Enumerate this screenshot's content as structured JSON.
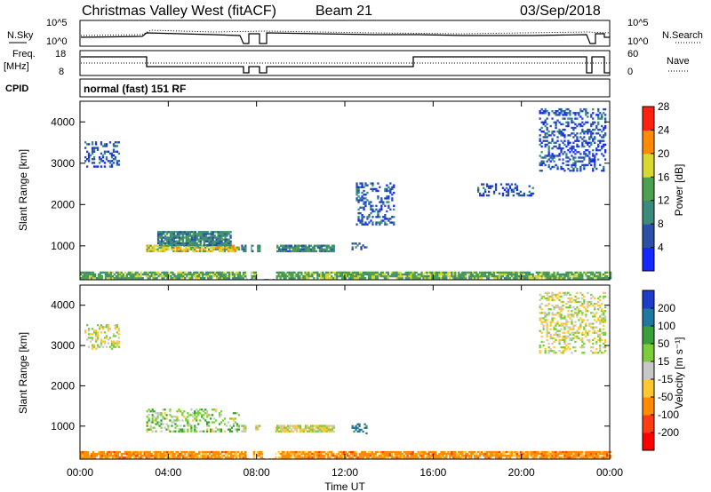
{
  "header": {
    "station": "Christmas Valley West (fitACF)",
    "beam": "Beam 21",
    "date": "03/Sep/2018"
  },
  "top_panels": {
    "nsky": {
      "label": "N.Sky",
      "left_ticks": [
        "10^5",
        "10^0"
      ],
      "right_label": "N.Search",
      "right_ticks": [
        "10^5",
        "10^0"
      ]
    },
    "freq": {
      "label_line1": "Freq.",
      "label_line2": "[MHz]",
      "left_ticks": [
        "18",
        "8"
      ],
      "right_label": "Nave",
      "right_ticks": [
        "60",
        "0"
      ]
    },
    "cpid": {
      "label": "CPID",
      "text": "normal (fast) 151 RF"
    }
  },
  "xaxis": {
    "label": "Time UT",
    "ticks": [
      "00:00",
      "04:00",
      "08:00",
      "12:00",
      "16:00",
      "20:00",
      "00:00"
    ]
  },
  "chart_data": [
    {
      "type": "heatmap",
      "title": "",
      "xlabel": "",
      "ylabel": "Slant Range [km]",
      "xlim": [
        0,
        24
      ],
      "ylim": [
        180,
        4500
      ],
      "yticks": [
        1000,
        2000,
        3000,
        4000
      ],
      "colorbar": {
        "label": "Power [dB]",
        "ticks": [
          "4",
          "8",
          "12",
          "16",
          "20",
          "24",
          "28"
        ],
        "colors": [
          "#1428ff",
          "#2c50a8",
          "#3c8a7c",
          "#4ca050",
          "#d8d830",
          "#ff8c00",
          "#ff2010"
        ]
      },
      "regions": [
        {
          "t": [
            3.0,
            7.2
          ],
          "range": [
            850,
            1000
          ],
          "value": 20
        },
        {
          "t": [
            3.5,
            6.8
          ],
          "range": [
            1000,
            1350
          ],
          "value": 12
        },
        {
          "t": [
            7.3,
            11.5
          ],
          "range": [
            850,
            1000
          ],
          "value": 12
        },
        {
          "t": [
            12.3,
            13.0
          ],
          "range": [
            900,
            1050
          ],
          "value": 8
        },
        {
          "t": [
            0.0,
            24.0
          ],
          "range": [
            200,
            350
          ],
          "value": 16
        },
        {
          "t": [
            0.2,
            1.8
          ],
          "range": [
            2900,
            3500
          ],
          "value": 8
        },
        {
          "t": [
            12.5,
            14.2
          ],
          "range": [
            1500,
            2500
          ],
          "value": 8
        },
        {
          "t": [
            18.0,
            20.5
          ],
          "range": [
            2200,
            2500
          ],
          "value": 8
        },
        {
          "t": [
            20.8,
            23.8
          ],
          "range": [
            2800,
            4300
          ],
          "value": 8
        }
      ]
    },
    {
      "type": "heatmap",
      "title": "",
      "xlabel": "Time UT",
      "ylabel": "Slant Range [km]",
      "xlim": [
        0,
        24
      ],
      "ylim": [
        180,
        4500
      ],
      "yticks": [
        1000,
        2000,
        3000,
        4000
      ],
      "colorbar": {
        "label": "Velocity [m s⁻¹]",
        "ticks": [
          "200",
          "100",
          "50",
          "15",
          "-15",
          "-50",
          "-100",
          "-200"
        ],
        "colors": [
          "#1e3cc8",
          "#1e78a0",
          "#3a9e3a",
          "#7ccc3c",
          "#c8c8c8",
          "#ffc832",
          "#ff8c00",
          "#ff3c14",
          "#ff0000"
        ]
      },
      "regions": [
        {
          "t": [
            3.0,
            7.2
          ],
          "range": [
            850,
            1400
          ],
          "value": 15
        },
        {
          "t": [
            7.3,
            11.5
          ],
          "range": [
            850,
            1000
          ],
          "value": 0
        },
        {
          "t": [
            12.3,
            13.0
          ],
          "range": [
            800,
            1050
          ],
          "value": 100
        },
        {
          "t": [
            0.0,
            24.0
          ],
          "range": [
            200,
            350
          ],
          "value": -50
        },
        {
          "t": [
            0.2,
            1.8
          ],
          "range": [
            2900,
            3500
          ],
          "value": 0
        },
        {
          "t": [
            20.8,
            23.8
          ],
          "range": [
            2800,
            4300
          ],
          "value": 0
        }
      ]
    }
  ]
}
